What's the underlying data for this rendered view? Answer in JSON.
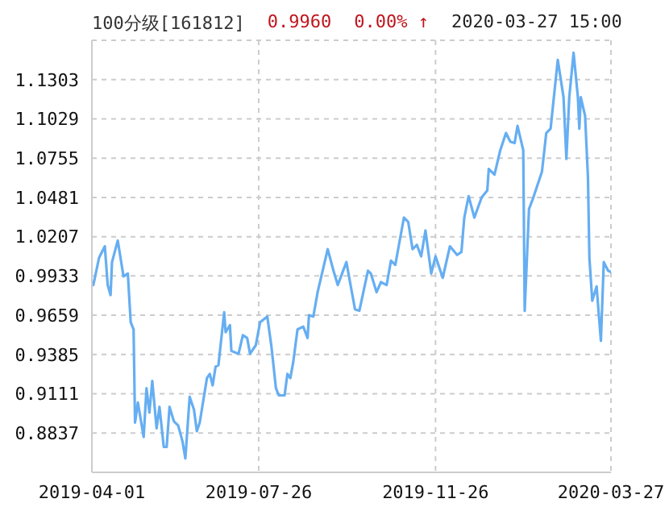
{
  "chart_data": {
    "type": "line",
    "title": "100分级[161812]",
    "annotations": [
      "0.9960",
      "0.00% ↑",
      "2020-03-27 15:00"
    ],
    "x": [
      "2019-04-01",
      "2019-04-02",
      "2019-04-06",
      "2019-04-10",
      "2019-04-12",
      "2019-04-14",
      "2019-04-15",
      "2019-04-19",
      "2019-04-23",
      "2019-04-26",
      "2019-04-28",
      "2019-04-30",
      "2019-05-01",
      "2019-05-03",
      "2019-05-07",
      "2019-05-09",
      "2019-05-11",
      "2019-05-13",
      "2019-05-16",
      "2019-05-18",
      "2019-05-21",
      "2019-05-23",
      "2019-05-25",
      "2019-05-28",
      "2019-05-31",
      "2019-06-03",
      "2019-06-05",
      "2019-06-08",
      "2019-06-11",
      "2019-06-13",
      "2019-06-15",
      "2019-06-20",
      "2019-06-22",
      "2019-06-24",
      "2019-06-26",
      "2019-06-28",
      "2019-07-02",
      "2019-07-03",
      "2019-07-06",
      "2019-07-07",
      "2019-07-12",
      "2019-07-15",
      "2019-07-18",
      "2019-07-20",
      "2019-07-24",
      "2019-07-27",
      "2019-08-01",
      "2019-08-04",
      "2019-08-07",
      "2019-08-09",
      "2019-08-13",
      "2019-08-15",
      "2019-08-17",
      "2019-08-19",
      "2019-08-22",
      "2019-08-26",
      "2019-08-29",
      "2019-08-30",
      "2019-09-02",
      "2019-09-05",
      "2019-09-12",
      "2019-09-16",
      "2019-09-19",
      "2019-09-25",
      "2019-09-27",
      "2019-10-01",
      "2019-10-04",
      "2019-10-10",
      "2019-10-12",
      "2019-10-16",
      "2019-10-19",
      "2019-10-23",
      "2019-10-26",
      "2019-10-29",
      "2019-11-04",
      "2019-11-07",
      "2019-11-10",
      "2019-11-13",
      "2019-11-16",
      "2019-11-19",
      "2019-11-23",
      "2019-11-26",
      "2019-12-01",
      "2019-12-06",
      "2019-12-11",
      "2019-12-14",
      "2019-12-16",
      "2019-12-19",
      "2019-12-23",
      "2019-12-28",
      "2020-01-01",
      "2020-01-02",
      "2020-01-06",
      "2020-01-10",
      "2020-01-14",
      "2020-01-17",
      "2020-01-20",
      "2020-01-22",
      "2020-01-26",
      "2020-01-27",
      "2020-01-30",
      "2020-02-02",
      "2020-02-08",
      "2020-02-11",
      "2020-02-14",
      "2020-02-19",
      "2020-02-23",
      "2020-02-25",
      "2020-02-27",
      "2020-03-01",
      "2020-03-04",
      "2020-03-05",
      "2020-03-06",
      "2020-03-09",
      "2020-03-11",
      "2020-03-12",
      "2020-03-14",
      "2020-03-17",
      "2020-03-20",
      "2020-03-22",
      "2020-03-25",
      "2020-03-27"
    ],
    "series": [
      {
        "color": "#66aef2",
        "values": [
          0.989,
          0.987,
          1.006,
          1.014,
          0.987,
          0.98,
          1.003,
          1.018,
          0.993,
          0.995,
          0.961,
          0.956,
          0.891,
          0.905,
          0.881,
          0.915,
          0.898,
          0.92,
          0.887,
          0.902,
          0.874,
          0.874,
          0.902,
          0.892,
          0.889,
          0.878,
          0.866,
          0.909,
          0.9,
          0.885,
          0.891,
          0.922,
          0.925,
          0.917,
          0.93,
          0.931,
          0.968,
          0.954,
          0.959,
          0.941,
          0.939,
          0.952,
          0.95,
          0.939,
          0.945,
          0.961,
          0.965,
          0.943,
          0.915,
          0.91,
          0.91,
          0.925,
          0.922,
          0.933,
          0.956,
          0.958,
          0.95,
          0.966,
          0.965,
          0.982,
          1.012,
          0.997,
          0.987,
          1.003,
          0.992,
          0.97,
          0.969,
          0.997,
          0.995,
          0.982,
          0.989,
          0.987,
          1.004,
          1.001,
          1.034,
          1.031,
          1.012,
          1.015,
          1.007,
          1.025,
          0.995,
          1.007,
          0.992,
          1.014,
          1.008,
          1.01,
          1.034,
          1.049,
          1.034,
          1.048,
          1.053,
          1.068,
          1.064,
          1.081,
          1.093,
          1.087,
          1.086,
          1.098,
          1.081,
          0.969,
          1.04,
          1.048,
          1.066,
          1.093,
          1.096,
          1.144,
          1.118,
          1.075,
          1.118,
          1.149,
          1.118,
          1.096,
          1.118,
          1.105,
          1.062,
          1.006,
          0.976,
          0.986,
          0.948,
          1.003,
          0.997,
          0.996
        ]
      }
    ],
    "xlim": [
      "2019-04-01",
      "2020-03-27"
    ],
    "xticks": [
      "2019-04-01",
      "2019-07-26",
      "2019-11-26",
      "2020-03-27"
    ],
    "ylim": [
      0.8563,
      1.1577
    ],
    "yticks": [
      0.8837,
      0.9111,
      0.9385,
      0.9659,
      0.9933,
      1.0207,
      1.0481,
      1.0755,
      1.1029,
      1.1303
    ],
    "grid": true,
    "marker": "none",
    "line_style": "solid"
  }
}
